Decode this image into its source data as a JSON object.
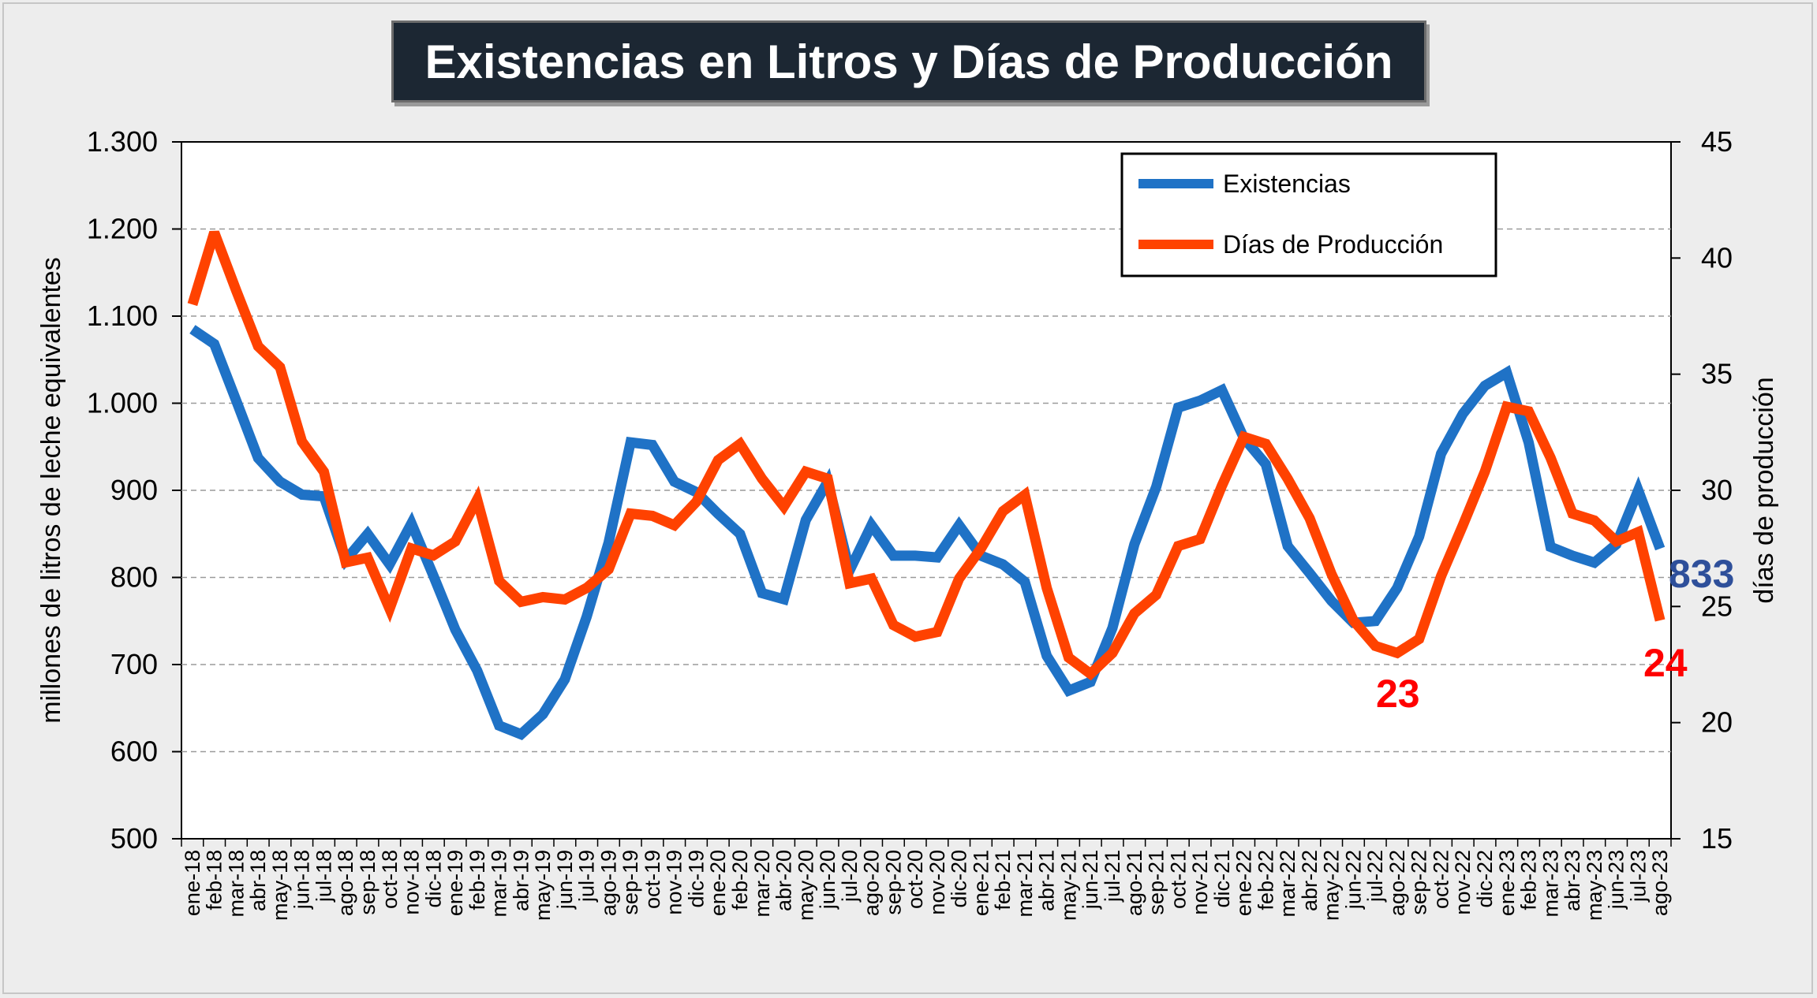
{
  "title": "Existencias en Litros y Días de Producción",
  "chart_data": {
    "type": "line",
    "title": "Existencias en Litros y Días de Producción",
    "ylabel": "millones de litros de leche equivalentes",
    "y2label": "días de producción",
    "ylim": [
      500,
      1300
    ],
    "y2lim": [
      15,
      45
    ],
    "yticks": [
      "500",
      "600",
      "700",
      "800",
      "900",
      "1.000",
      "1.100",
      "1.200",
      "1.300"
    ],
    "y2ticks": [
      "15",
      "20",
      "25",
      "30",
      "35",
      "40",
      "45"
    ],
    "grid": true,
    "legend_position": "top-right",
    "x": [
      "ene-18",
      "feb-18",
      "mar-18",
      "abr-18",
      "may-18",
      "jun-18",
      "jul-18",
      "ago-18",
      "sep-18",
      "oct-18",
      "nov-18",
      "dic-18",
      "ene-19",
      "feb-19",
      "mar-19",
      "abr-19",
      "may-19",
      "jun-19",
      "jul-19",
      "ago-19",
      "sep-19",
      "oct-19",
      "nov-19",
      "dic-19",
      "ene-20",
      "feb-20",
      "mar-20",
      "abr-20",
      "may-20",
      "jun-20",
      "jul-20",
      "ago-20",
      "sep-20",
      "oct-20",
      "nov-20",
      "dic-20",
      "ene-21",
      "feb-21",
      "mar-21",
      "abr-21",
      "may-21",
      "jun-21",
      "jul-21",
      "ago-21",
      "sep-21",
      "oct-21",
      "nov-21",
      "dic-21",
      "ene-22",
      "feb-22",
      "mar-22",
      "abr-22",
      "may-22",
      "jun-22",
      "jul-22",
      "ago-22",
      "sep-22",
      "oct-22",
      "nov-22",
      "dic-22",
      "ene-23",
      "feb-23",
      "mar-23",
      "abr-23",
      "may-23",
      "jun-23",
      "jul-23",
      "ago-23"
    ],
    "series": [
      {
        "name": "Existencias",
        "color": "#1f72c6",
        "axis": "left",
        "values": [
          1085,
          1068,
          1003,
          937,
          910,
          895,
          893,
          820,
          850,
          815,
          862,
          802,
          740,
          693,
          630,
          620,
          643,
          683,
          755,
          840,
          955,
          952,
          910,
          898,
          873,
          850,
          782,
          775,
          866,
          910,
          808,
          860,
          825,
          825,
          823,
          860,
          825,
          815,
          795,
          710,
          670,
          680,
          742,
          838,
          904,
          995,
          1003,
          1015,
          960,
          930,
          836,
          805,
          773,
          748,
          750,
          788,
          847,
          942,
          988,
          1020,
          1035,
          955,
          835,
          825,
          817,
          838,
          900,
          833
        ]
      },
      {
        "name": "Días de Producción",
        "color": "#ff4200",
        "axis": "right",
        "values": [
          38.0,
          41.1,
          38.6,
          36.2,
          35.3,
          32.1,
          30.8,
          26.9,
          27.1,
          24.9,
          27.5,
          27.2,
          27.8,
          29.6,
          26.1,
          25.2,
          25.4,
          25.3,
          25.8,
          26.6,
          29.0,
          28.9,
          28.5,
          29.5,
          31.3,
          32.0,
          30.5,
          29.3,
          30.8,
          30.5,
          26.0,
          26.2,
          24.2,
          23.7,
          23.9,
          26.2,
          27.5,
          29.1,
          29.8,
          25.8,
          22.8,
          22.1,
          23.0,
          24.7,
          25.5,
          27.6,
          27.9,
          30.2,
          32.3,
          32.0,
          30.5,
          28.8,
          26.4,
          24.4,
          23.3,
          23.0,
          23.6,
          26.3,
          28.5,
          30.8,
          33.6,
          33.4,
          31.4,
          29.0,
          28.7,
          27.8,
          28.2,
          24.4
        ]
      }
    ],
    "annotations": [
      {
        "text": "833",
        "series": "Existencias",
        "color": "#2e4f9a"
      },
      {
        "text": "23",
        "series": "Días de Producción",
        "color": "#ff0000"
      },
      {
        "text": "24",
        "series": "Días de Producción",
        "color": "#ff0000"
      }
    ]
  }
}
